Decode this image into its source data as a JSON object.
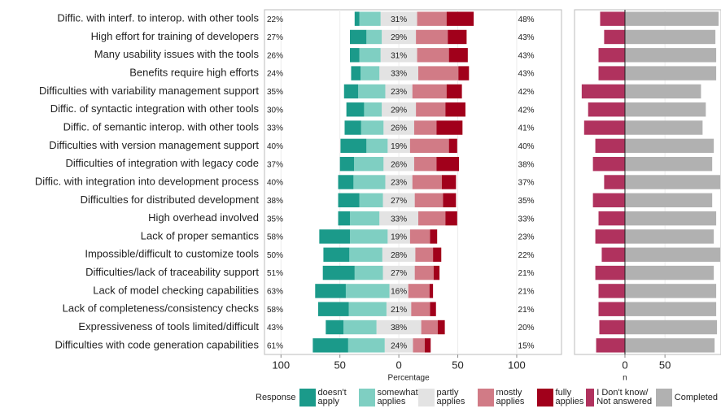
{
  "chart_data": [
    {
      "type": "likert",
      "categories": [
        "Diffic. with interf. to interop. with other tools",
        "High effort for training of developers",
        "Many usability issues with the tools",
        "Benefits require high efforts",
        "Difficulties with variability management support",
        "Diffic. of syntactic integration with other tools",
        "Diffic. of semantic interop. with other tools",
        "Difficulties with version management support",
        "Difficulties of integration with legacy code",
        "Diffic. with integration into development process",
        "Difficulties for distributed development",
        "High overhead involved",
        "Lack of proper semantics",
        "Impossible/difficult to customize tools",
        "Difficulties/lack of traceability support",
        "Lack of model checking capabilities",
        "Lack of completeness/consistency checks",
        "Expressiveness of tools limited/difficult",
        "Difficulties with code generation capabilities"
      ],
      "series": [
        {
          "name": "doesn't apply",
          "color": "#1b9a8a",
          "side": "left",
          "values": [
            4,
            14,
            8,
            8,
            12,
            15,
            14,
            22,
            12,
            13,
            18,
            10,
            26,
            22,
            27,
            26,
            26,
            15,
            30
          ]
        },
        {
          "name": "somewhat applies",
          "color": "#7fcfc2",
          "side": "left",
          "values": [
            18,
            13,
            18,
            16,
            23,
            15,
            19,
            18,
            25,
            27,
            20,
            25,
            32,
            28,
            24,
            37,
            32,
            28,
            31
          ]
        },
        {
          "name": "partly applies",
          "color": "#e3e3e3",
          "side": "center",
          "values": [
            31,
            29,
            31,
            33,
            23,
            29,
            26,
            19,
            26,
            23,
            27,
            33,
            19,
            28,
            27,
            16,
            21,
            38,
            24
          ],
          "value_labels": [
            "31%",
            "29%",
            "31%",
            "33%",
            "23%",
            "29%",
            "26%",
            "19%",
            "26%",
            "23%",
            "27%",
            "33%",
            "19%",
            "28%",
            "27%",
            "16%",
            "21%",
            "38%",
            "24%"
          ]
        },
        {
          "name": "mostly applies",
          "color": "#d17b86",
          "side": "right",
          "values": [
            25,
            27,
            27,
            34,
            29,
            25,
            19,
            33,
            19,
            25,
            24,
            23,
            17,
            15,
            16,
            18,
            16,
            14,
            10
          ]
        },
        {
          "name": "fully applies",
          "color": "#a1001b",
          "side": "right",
          "values": [
            23,
            16,
            16,
            9,
            13,
            17,
            22,
            7,
            19,
            12,
            11,
            10,
            6,
            7,
            5,
            3,
            5,
            6,
            5
          ]
        }
      ],
      "left_labels": [
        "22%",
        "27%",
        "26%",
        "24%",
        "35%",
        "30%",
        "33%",
        "40%",
        "37%",
        "40%",
        "38%",
        "35%",
        "58%",
        "50%",
        "51%",
        "63%",
        "58%",
        "43%",
        "61%"
      ],
      "right_labels": [
        "48%",
        "43%",
        "43%",
        "43%",
        "42%",
        "42%",
        "41%",
        "40%",
        "38%",
        "37%",
        "35%",
        "33%",
        "23%",
        "22%",
        "21%",
        "21%",
        "21%",
        "20%",
        "15%"
      ],
      "xlim": [
        -114,
        138
      ],
      "xticks": [
        {
          "value": -100,
          "label": "100"
        },
        {
          "value": -50,
          "label": "50"
        },
        0,
        50,
        100
      ],
      "xlabel": "Percentage",
      "legend_title": "Response",
      "grid": true
    },
    {
      "type": "likert",
      "series": [
        {
          "name": "I Don't know/ Not answered",
          "color": "#b0325e",
          "side": "left",
          "values": [
            31,
            26,
            33,
            33,
            54,
            46,
            51,
            37,
            40,
            26,
            40,
            33,
            37,
            29,
            37,
            33,
            33,
            32,
            36
          ]
        },
        {
          "name": "Completed",
          "color": "#b1b1b1",
          "side": "right",
          "values": [
            117,
            113,
            114,
            114,
            95,
            101,
            97,
            111,
            109,
            119,
            109,
            114,
            111,
            119,
            111,
            114,
            114,
            115,
            112
          ]
        }
      ],
      "xlim": [
        -63,
        120
      ],
      "xticks": [
        0,
        50
      ],
      "xlabel": "n",
      "grid": true
    }
  ]
}
